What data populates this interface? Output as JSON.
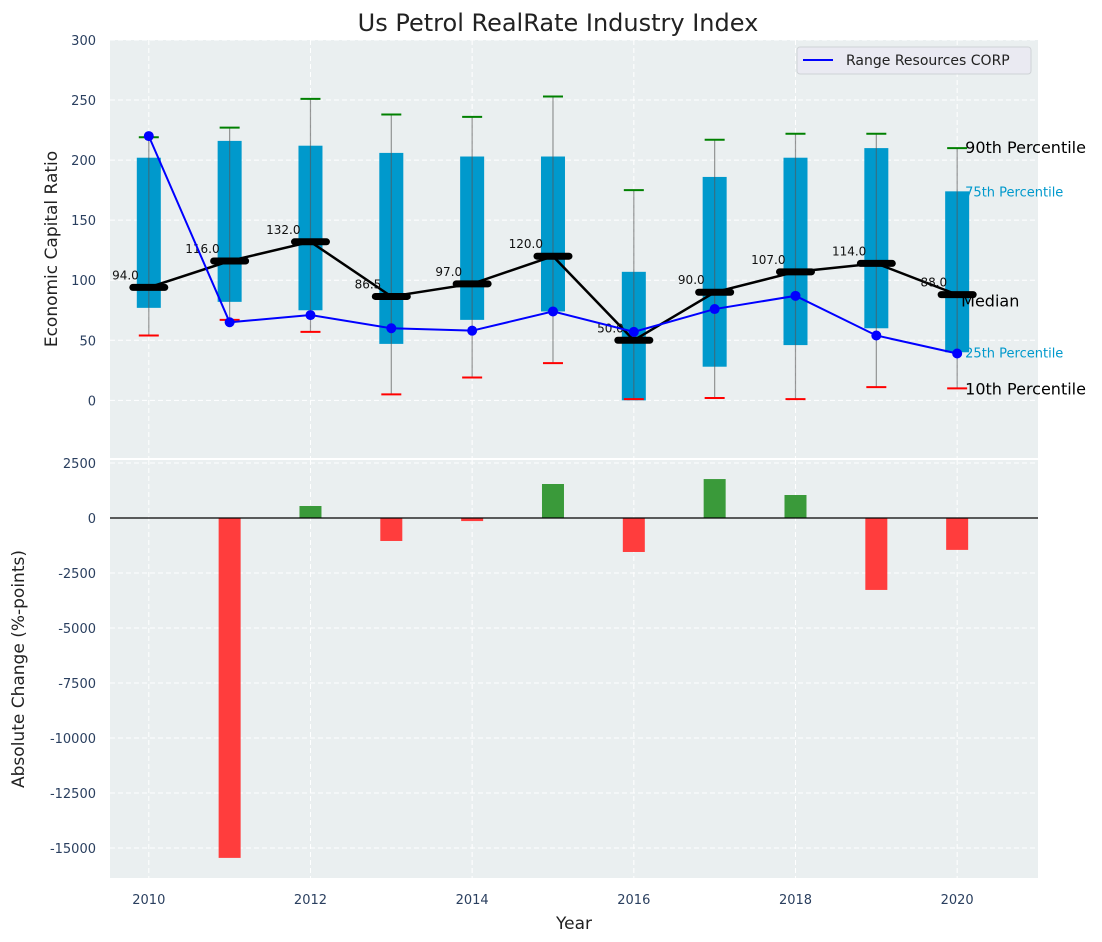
{
  "chart_data": [
    {
      "type": "box-range+line",
      "title": "Us Petrol RealRate Industry Index",
      "xlabel": "",
      "ylabel": "Economic Capital Ratio",
      "xlim": [
        2009.52,
        2021.0
      ],
      "ylim": [
        -48,
        300
      ],
      "yticks": [
        0,
        50,
        100,
        150,
        200,
        250,
        300
      ],
      "grid": true,
      "legend_position": "top-right",
      "legend": [
        "Range Resources CORP"
      ],
      "x": [
        2010,
        2011,
        2012,
        2013,
        2014,
        2015,
        2016,
        2017,
        2018,
        2019,
        2020
      ],
      "p10": [
        54,
        67,
        57,
        5,
        19,
        31,
        1,
        2,
        1,
        11,
        10
      ],
      "p25": [
        77,
        82,
        75,
        47,
        67,
        74,
        0,
        28,
        46,
        60,
        40
      ],
      "median": [
        94.0,
        116.0,
        132.0,
        86.5,
        97.0,
        120.0,
        50.0,
        90.0,
        107.0,
        114.0,
        88.0
      ],
      "median_labels": [
        "94.0",
        "116.0",
        "132.0",
        "86.5",
        "97.0",
        "120.0",
        "50.0",
        "90.0",
        "107.0",
        "114.0",
        "88.0"
      ],
      "p75": [
        202,
        216,
        212,
        206,
        203,
        203,
        107,
        186,
        202,
        210,
        174
      ],
      "p90": [
        219,
        227,
        251,
        238,
        236,
        253,
        175,
        217,
        222,
        222,
        210
      ],
      "company": {
        "name": "Range Resources CORP",
        "values": [
          220,
          65,
          71,
          60,
          58,
          74,
          57,
          76,
          87,
          54,
          39
        ]
      },
      "annotations": {
        "p90": "90th Percentile",
        "p75": "75th Percentile",
        "median": "Median",
        "p25": "25th Percentile",
        "p10": "10th Percentile"
      }
    },
    {
      "type": "bar",
      "xlabel": "Year",
      "ylabel": "Absolute Change (%-points)",
      "xlim": [
        2009.52,
        2021.0
      ],
      "ylim": [
        -16364,
        2636
      ],
      "yticks": [
        2500,
        0,
        -2500,
        -5000,
        -7500,
        -10000,
        -12500,
        -15000
      ],
      "xticks": [
        2010,
        2012,
        2014,
        2016,
        2018,
        2020
      ],
      "grid": true,
      "x": [
        2011,
        2012,
        2013,
        2014,
        2015,
        2016,
        2017,
        2018,
        2019,
        2020
      ],
      "values": [
        -15450,
        545,
        -1045,
        -140,
        1545,
        -1545,
        1770,
        1045,
        -3270,
        -1450
      ]
    }
  ],
  "colors": {
    "box": "#0099cc",
    "company": "#0000ff",
    "median": "#000000",
    "p90": "#008000",
    "p10": "#ff0000",
    "pos": "#3a9a3a",
    "neg": "#ff3d3d",
    "bg": "#eaeff0"
  }
}
